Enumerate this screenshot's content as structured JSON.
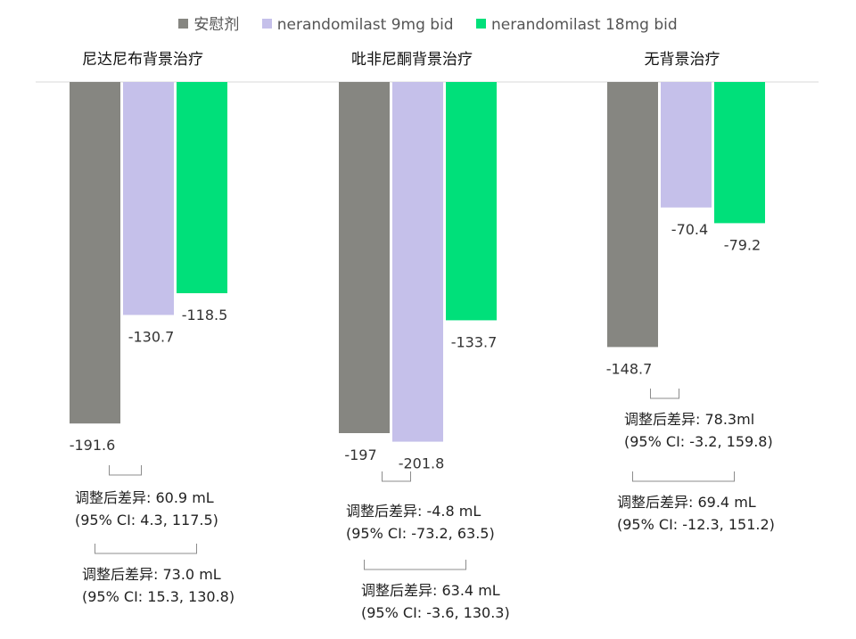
{
  "chart_data": {
    "type": "bar",
    "categories": [
      "尼达尼布背景治疗",
      "吡非尼酮背景治疗",
      "无背景治疗"
    ],
    "series": [
      {
        "name": "安慰剂",
        "color": "#868681",
        "values": [
          -191.6,
          -197,
          -148.7
        ],
        "labels": [
          "-191.6",
          "-197",
          "-148.7"
        ]
      },
      {
        "name": "nerandomilast 9mg bid",
        "color": "#c5c0ea",
        "values": [
          -130.7,
          -201.8,
          -70.4
        ],
        "labels": [
          "-130.7",
          "-201.8",
          "-70.4"
        ]
      },
      {
        "name": "nerandomilast 18mg bid",
        "color": "#00e07a",
        "values": [
          -118.5,
          -133.7,
          -79.2
        ],
        "labels": [
          "-118.5",
          "-133.7",
          "-79.2"
        ]
      }
    ],
    "ylim": [
      -205,
      0
    ],
    "grid": false,
    "legend_position": "top",
    "annotations": [
      {
        "group": 0,
        "compare": "9mg vs 安慰剂",
        "line1": "调整后差异: 60.9 mL",
        "line2": "(95% CI: 4.3, 117.5)"
      },
      {
        "group": 0,
        "compare": "18mg vs 安慰剂",
        "line1": "调整后差异: 73.0 mL",
        "line2": "(95% CI: 15.3, 130.8)"
      },
      {
        "group": 1,
        "compare": "9mg vs 安慰剂",
        "line1": "调整后差异: -4.8 mL",
        "line2": "(95% CI: -73.2, 63.5)"
      },
      {
        "group": 1,
        "compare": "18mg vs 安慰剂",
        "line1": "调整后差异: 63.4 mL",
        "line2": "(95% CI: -3.6, 130.3)"
      },
      {
        "group": 2,
        "compare": "9mg vs 安慰剂",
        "line1": "调整后差异: 78.3ml",
        "line2": "(95% CI: -3.2, 159.8)"
      },
      {
        "group": 2,
        "compare": "18mg vs 安慰剂",
        "line1": "调整后差异: 69.4 mL",
        "line2": "(95% CI: -12.3, 151.2)"
      }
    ]
  }
}
